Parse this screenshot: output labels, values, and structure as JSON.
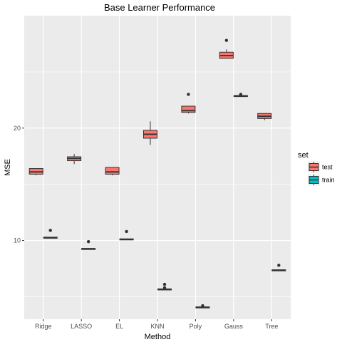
{
  "chart_data": {
    "type": "boxplot",
    "title": "Base Learner Performance",
    "xlabel": "Method",
    "ylabel": "MSE",
    "categories": [
      "Ridge",
      "LASSO",
      "EL",
      "KNN",
      "Poly",
      "Gauss",
      "Tree"
    ],
    "ylim": [
      3.0,
      30.0
    ],
    "yticks": [
      10,
      20
    ],
    "grid": true,
    "legend": {
      "title": "set",
      "placement": "right",
      "entries": [
        {
          "name": "test",
          "color": "#F8766D"
        },
        {
          "name": "train",
          "color": "#00BFC4"
        }
      ]
    },
    "series": [
      {
        "name": "test",
        "color": "#F8766D",
        "boxes": [
          {
            "min": 15.8,
            "q1": 15.9,
            "median": 16.1,
            "q3": 16.4,
            "max": 16.4,
            "outliers": []
          },
          {
            "min": 16.8,
            "q1": 17.1,
            "median": 17.3,
            "q3": 17.45,
            "max": 17.7,
            "outliers": []
          },
          {
            "min": 15.8,
            "q1": 15.9,
            "median": 16.1,
            "q3": 16.5,
            "max": 16.5,
            "outliers": []
          },
          {
            "min": 18.5,
            "q1": 19.1,
            "median": 19.45,
            "q3": 19.8,
            "max": 20.6,
            "outliers": []
          },
          {
            "min": 21.3,
            "q1": 21.4,
            "median": 21.55,
            "q3": 21.95,
            "max": 21.95,
            "outliers": [
              23.0
            ]
          },
          {
            "min": 26.2,
            "q1": 26.2,
            "median": 26.45,
            "q3": 26.75,
            "max": 27.0,
            "outliers": [
              27.8
            ]
          },
          {
            "min": 20.7,
            "q1": 20.85,
            "median": 21.05,
            "q3": 21.3,
            "max": 21.3,
            "outliers": []
          }
        ]
      },
      {
        "name": "train",
        "color": "#00BFC4",
        "boxes": [
          {
            "min": 10.2,
            "q1": 10.2,
            "median": 10.25,
            "q3": 10.3,
            "max": 10.3,
            "outliers": [
              10.9
            ]
          },
          {
            "min": 9.2,
            "q1": 9.2,
            "median": 9.25,
            "q3": 9.3,
            "max": 9.3,
            "outliers": [
              9.9
            ]
          },
          {
            "min": 10.05,
            "q1": 10.05,
            "median": 10.1,
            "q3": 10.15,
            "max": 10.15,
            "outliers": [
              10.8
            ]
          },
          {
            "min": 5.6,
            "q1": 5.6,
            "median": 5.65,
            "q3": 5.7,
            "max": 5.7,
            "outliers": [
              6.1,
              5.8
            ]
          },
          {
            "min": 4.0,
            "q1": 4.0,
            "median": 4.05,
            "q3": 4.1,
            "max": 4.1,
            "outliers": [
              4.2
            ]
          },
          {
            "min": 22.8,
            "q1": 22.8,
            "median": 22.85,
            "q3": 22.9,
            "max": 22.9,
            "outliers": [
              23.0
            ]
          },
          {
            "min": 7.3,
            "q1": 7.3,
            "median": 7.35,
            "q3": 7.4,
            "max": 7.4,
            "outliers": [
              7.8
            ]
          }
        ]
      }
    ]
  }
}
